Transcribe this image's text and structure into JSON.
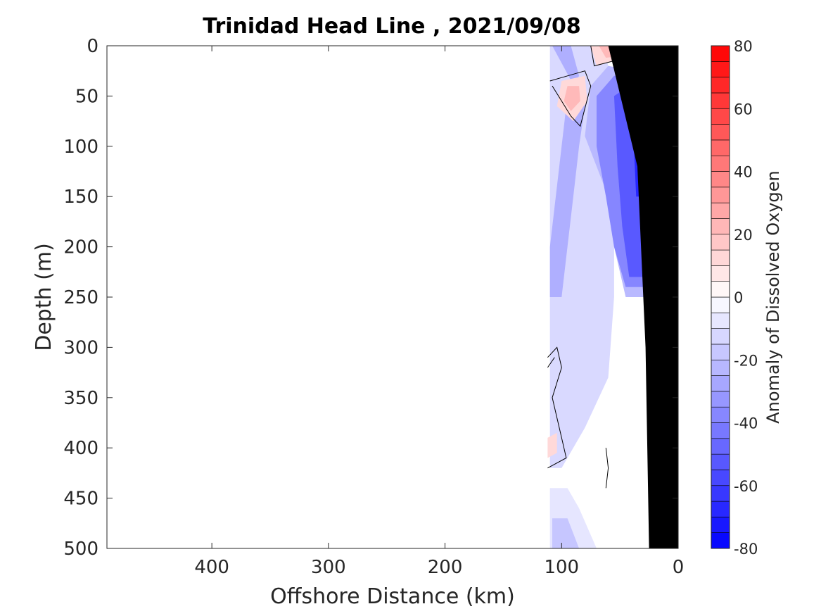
{
  "chart_data": {
    "type": "heatmap",
    "title": "Trinidad Head Line , 2021/09/08",
    "xlabel": "Offshore Distance (km)",
    "ylabel": "Depth (m)",
    "xlim": [
      490,
      0
    ],
    "ylim": [
      0,
      500
    ],
    "x_ticks": [
      "400",
      "300",
      "200",
      "100",
      "0"
    ],
    "x_tick_values": [
      400,
      300,
      200,
      100,
      0
    ],
    "y_ticks": [
      "0",
      "50",
      "100",
      "150",
      "200",
      "250",
      "300",
      "350",
      "400",
      "450",
      "500"
    ],
    "y_tick_values": [
      0,
      50,
      100,
      150,
      200,
      250,
      300,
      350,
      400,
      450,
      500
    ],
    "colorbar": {
      "label": "Anomaly of Dissolved Oxygen",
      "range": [
        -80,
        80
      ],
      "step": 5,
      "ticks": [
        "80",
        "60",
        "40",
        "20",
        "0",
        "-20",
        "-40",
        "-60",
        "-80"
      ],
      "tick_values": [
        80,
        60,
        40,
        20,
        0,
        -20,
        -40,
        -60,
        -80
      ],
      "colors": {
        "negative": "#0000ff",
        "zero": "#ffffff",
        "positive": "#ff0000"
      }
    },
    "grid": false,
    "seafloor_color": "#000000",
    "contour_line_value": 0,
    "field_regions": [
      {
        "value": -12,
        "dist": [
          [
            110,
            0
          ],
          [
            65,
            0
          ],
          [
            60,
            20
          ],
          [
            55,
            100
          ],
          [
            55,
            250
          ],
          [
            60,
            330
          ],
          [
            80,
            380
          ],
          [
            100,
            420
          ],
          [
            110,
            420
          ]
        ]
      },
      {
        "value": -25,
        "dist": [
          [
            108,
            0
          ],
          [
            92,
            0
          ],
          [
            85,
            30
          ],
          [
            95,
            50
          ],
          [
            100,
            100
          ],
          [
            105,
            150
          ],
          [
            110,
            200
          ],
          [
            110,
            250
          ],
          [
            100,
            250
          ],
          [
            90,
            150
          ],
          [
            85,
            100
          ],
          [
            80,
            60
          ]
        ]
      },
      {
        "value": -22,
        "dist": [
          [
            75,
            40
          ],
          [
            60,
            20
          ],
          [
            38,
            25
          ],
          [
            30,
            60
          ],
          [
            28,
            250
          ],
          [
            45,
            250
          ],
          [
            55,
            200
          ],
          [
            60,
            150
          ],
          [
            70,
            120
          ],
          [
            80,
            90
          ]
        ]
      },
      {
        "value": -38,
        "dist": [
          [
            70,
            50
          ],
          [
            55,
            30
          ],
          [
            40,
            30
          ],
          [
            32,
            60
          ],
          [
            30,
            240
          ],
          [
            45,
            240
          ],
          [
            55,
            200
          ],
          [
            62,
            150
          ],
          [
            70,
            100
          ]
        ]
      },
      {
        "value": -52,
        "dist": [
          [
            55,
            50
          ],
          [
            42,
            40
          ],
          [
            32,
            60
          ],
          [
            30,
            230
          ],
          [
            42,
            230
          ],
          [
            48,
            180
          ],
          [
            52,
            120
          ]
        ]
      },
      {
        "value": -68,
        "dist": [
          [
            40,
            60
          ],
          [
            32,
            70
          ],
          [
            30,
            150
          ],
          [
            36,
            150
          ],
          [
            38,
            100
          ]
        ]
      },
      {
        "value": -8,
        "dist": [
          [
            110,
            440
          ],
          [
            95,
            440
          ],
          [
            85,
            460
          ],
          [
            70,
            500
          ],
          [
            110,
            500
          ]
        ]
      },
      {
        "value": -18,
        "dist": [
          [
            108,
            470
          ],
          [
            95,
            470
          ],
          [
            85,
            500
          ],
          [
            108,
            500
          ]
        ]
      },
      {
        "value": 12,
        "dist": [
          [
            100,
            35
          ],
          [
            80,
            30
          ],
          [
            78,
            55
          ],
          [
            90,
            75
          ],
          [
            104,
            60
          ]
        ]
      },
      {
        "value": 22,
        "dist": [
          [
            95,
            40
          ],
          [
            85,
            40
          ],
          [
            84,
            55
          ],
          [
            92,
            65
          ],
          [
            98,
            55
          ]
        ]
      },
      {
        "value": 12,
        "dist": [
          [
            75,
            0
          ],
          [
            30,
            0
          ],
          [
            30,
            40
          ],
          [
            40,
            20
          ],
          [
            55,
            15
          ],
          [
            70,
            20
          ]
        ]
      },
      {
        "value": 22,
        "dist": [
          [
            68,
            0
          ],
          [
            35,
            0
          ],
          [
            36,
            15
          ],
          [
            50,
            10
          ],
          [
            62,
            12
          ]
        ]
      },
      {
        "value": 12,
        "dist": [
          [
            112,
            390
          ],
          [
            104,
            385
          ],
          [
            104,
            405
          ],
          [
            112,
            410
          ]
        ]
      }
    ],
    "seafloor": [
      [
        0,
        0
      ],
      [
        0,
        500
      ],
      [
        25,
        500
      ],
      [
        28,
        300
      ],
      [
        35,
        120
      ],
      [
        60,
        0
      ]
    ]
  }
}
